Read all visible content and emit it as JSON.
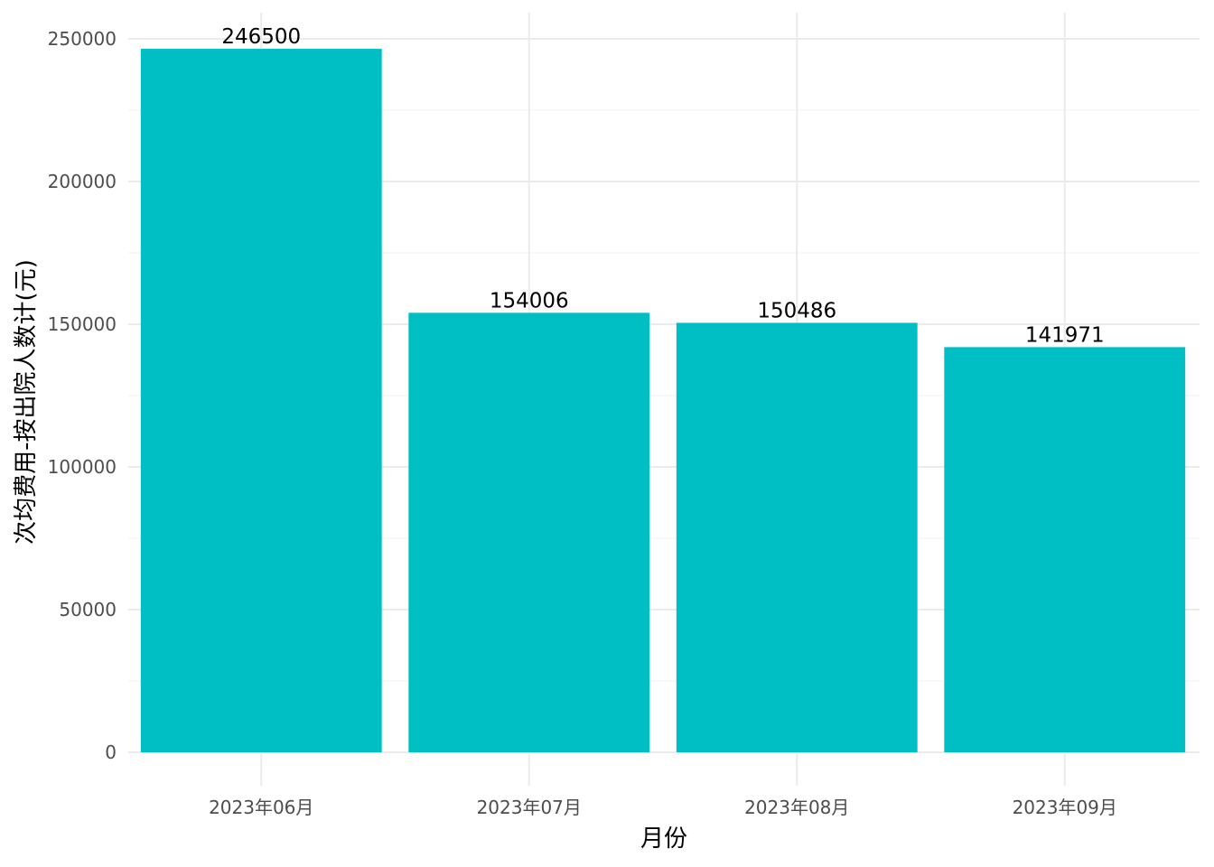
{
  "chart_data": {
    "type": "bar",
    "categories": [
      "2023年06月",
      "2023年07月",
      "2023年08月",
      "2023年09月"
    ],
    "values": [
      246500,
      154006,
      150486,
      141971
    ],
    "data_labels": [
      "246500",
      "154006",
      "150486",
      "141971"
    ],
    "title": "",
    "xlabel": "月份",
    "ylabel": "次均费用-按出院人数计(元)",
    "ylim": [
      0,
      250000
    ],
    "yticks": [
      0,
      50000,
      100000,
      150000,
      200000,
      250000
    ],
    "ytick_labels": [
      "0",
      "50000",
      "100000",
      "150000",
      "200000",
      "250000"
    ],
    "grid": true,
    "legend": "none",
    "bar_color": "#00BFC4"
  }
}
